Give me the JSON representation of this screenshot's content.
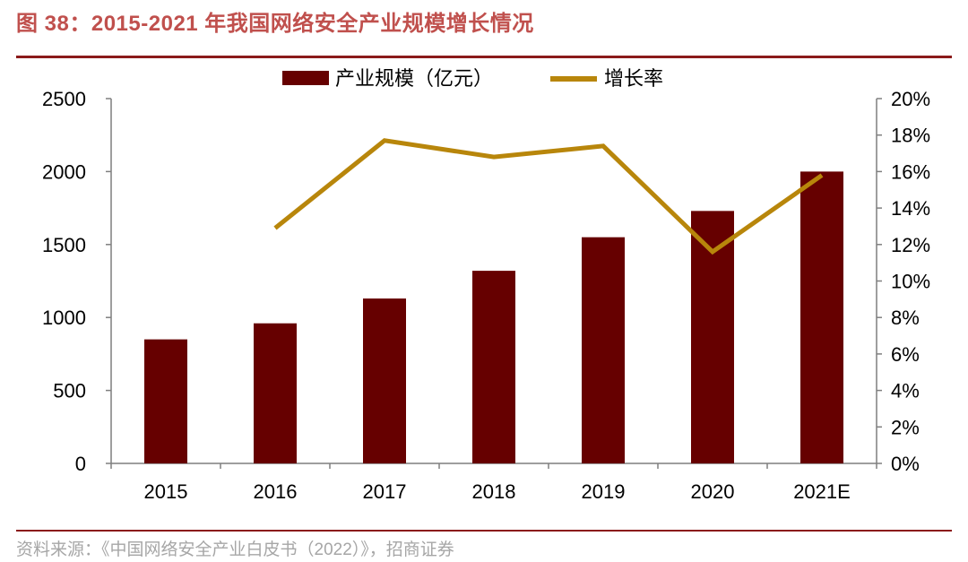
{
  "figure": {
    "title": "图 38：2015-2021 年我国网络安全产业规模增长情况",
    "source": "资料来源：《中国网络安全产业白皮书（2022）》，招商证券"
  },
  "colors": {
    "bar": "#660000",
    "line": "#b8860b",
    "title": "#c0504d",
    "rule": "#8b1a1a"
  },
  "chart_data": {
    "type": "bar",
    "title": "",
    "categories": [
      "2015",
      "2016",
      "2017",
      "2018",
      "2019",
      "2020",
      "2021E"
    ],
    "series": [
      {
        "name": "产业规模（亿元）",
        "type": "bar",
        "axis": "left",
        "values": [
          850,
          960,
          1130,
          1320,
          1550,
          1730,
          2000
        ]
      },
      {
        "name": "增长率",
        "type": "line",
        "axis": "right",
        "unit": "%",
        "values": [
          null,
          12.9,
          17.7,
          16.8,
          17.4,
          11.6,
          15.8
        ]
      }
    ],
    "y_left": {
      "min": 0,
      "max": 2500,
      "step": 500,
      "ticks": [
        "0",
        "500",
        "1000",
        "1500",
        "2000",
        "2500"
      ]
    },
    "y_right": {
      "min": 0,
      "max": 20,
      "step": 2,
      "ticks": [
        "0%",
        "2%",
        "4%",
        "6%",
        "8%",
        "10%",
        "12%",
        "14%",
        "16%",
        "18%",
        "20%"
      ]
    },
    "legend_position": "top-center",
    "grid": false
  }
}
